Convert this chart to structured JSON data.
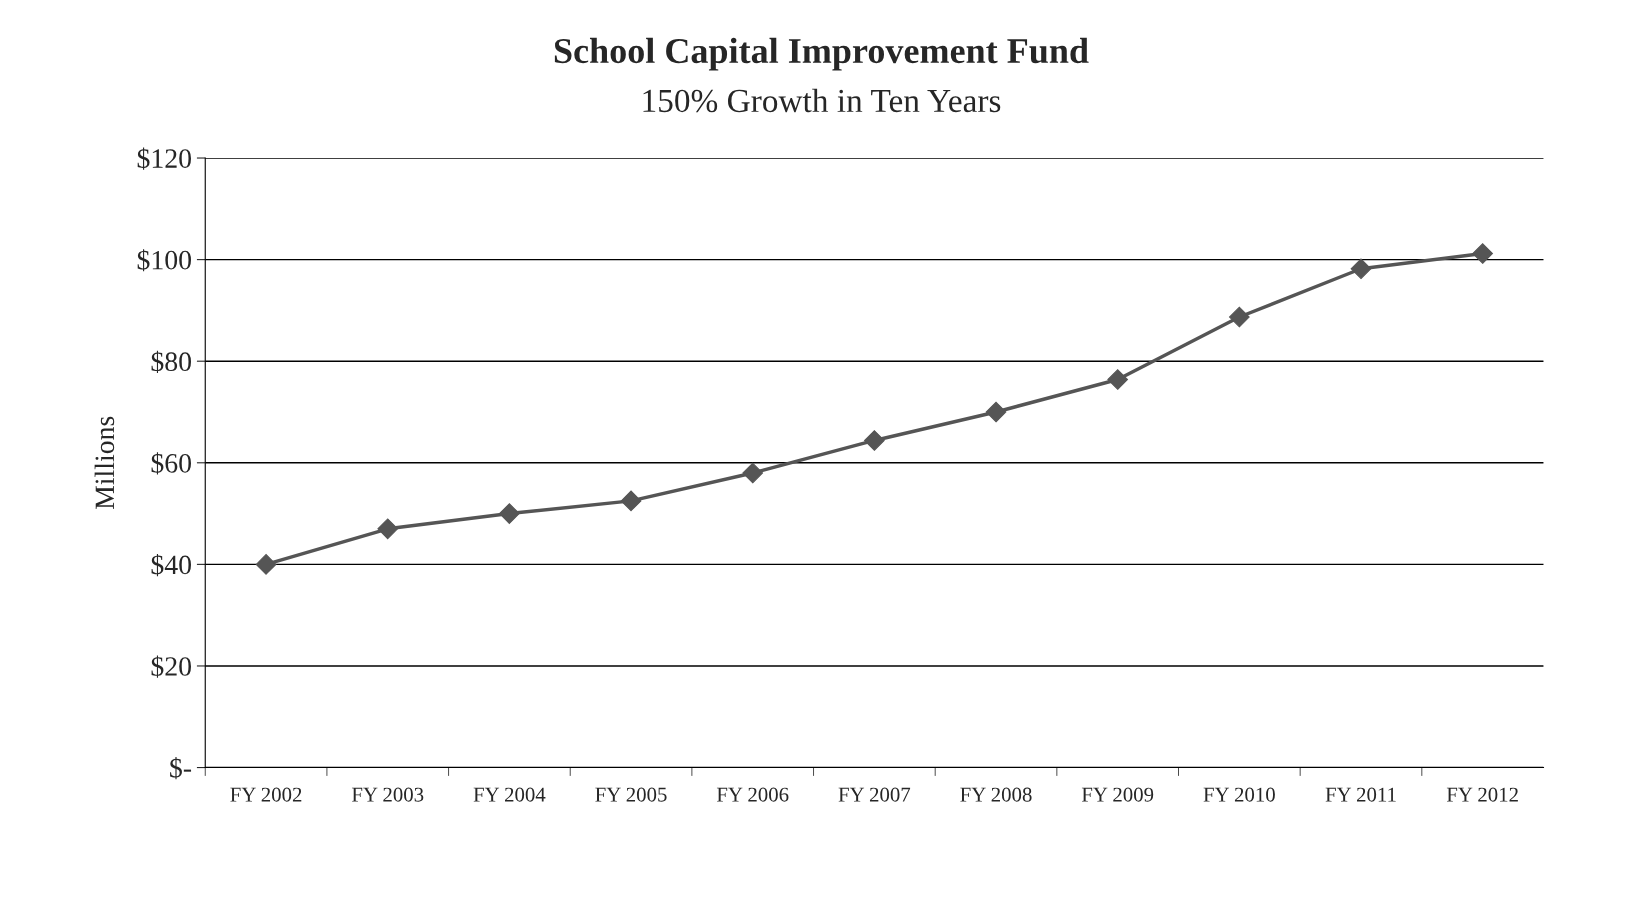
{
  "chart_data": {
    "type": "line",
    "title": "School Capital Improvement Fund",
    "subtitle": "150% Growth in Ten Years",
    "ylabel": "Millions",
    "categories": [
      "FY 2002",
      "FY 2003",
      "FY 2004",
      "FY 2005",
      "FY 2006",
      "FY 2007",
      "FY 2008",
      "FY 2009",
      "FY 2010",
      "FY 2011",
      "FY 2012"
    ],
    "series": [
      {
        "color": "#555555",
        "values": [
          40,
          47,
          50,
          52.5,
          58,
          64.4,
          70,
          76.4,
          88.7,
          98.2,
          101.2
        ]
      }
    ],
    "ylim": [
      0,
      120
    ],
    "yticks": [
      {
        "value": 0,
        "label": "$-"
      },
      {
        "value": 20,
        "label": "$20"
      },
      {
        "value": 40,
        "label": "$40"
      },
      {
        "value": 60,
        "label": "$60"
      },
      {
        "value": 80,
        "label": "$80"
      },
      {
        "value": 100,
        "label": "$100"
      },
      {
        "value": 120,
        "label": "$120"
      }
    ],
    "grid": "y",
    "marker": "diamond",
    "line_style": "solid"
  }
}
